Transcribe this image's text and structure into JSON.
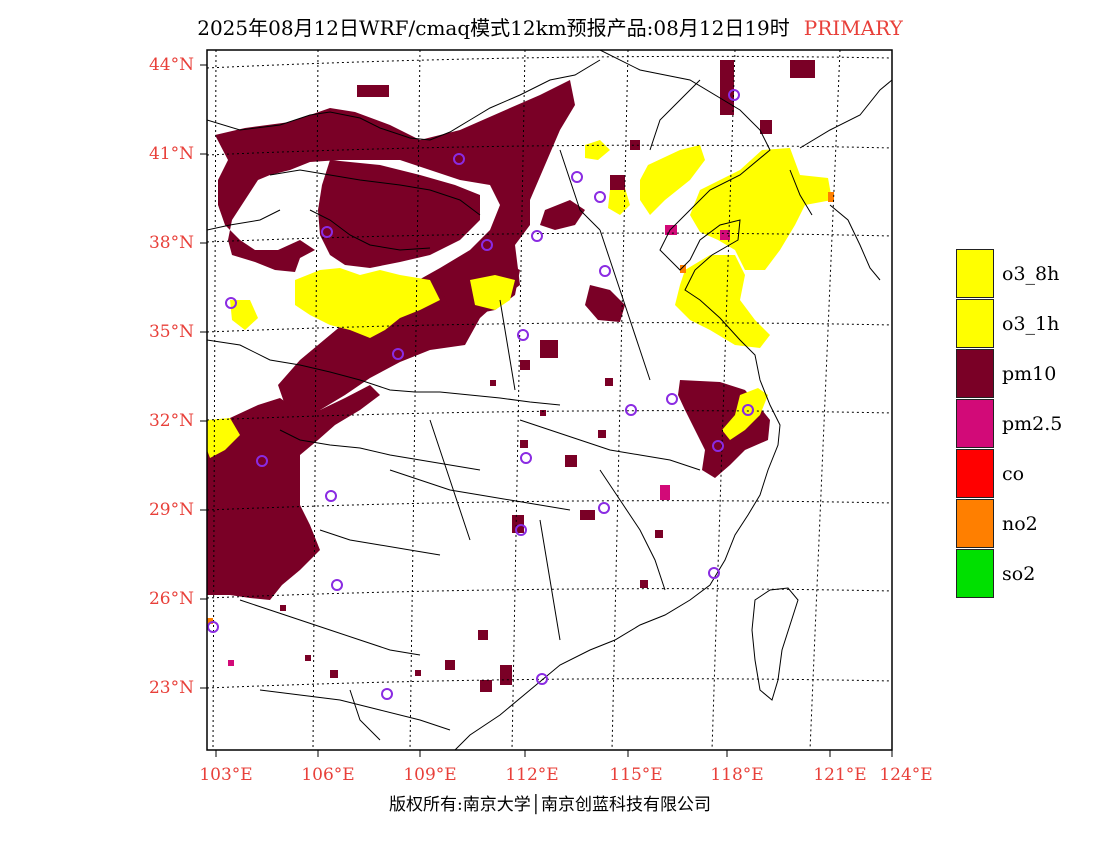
{
  "title": {
    "main": "2025年08月12日WRF/cmaq模式12km预报产品:08月12日19时",
    "tag": "PRIMARY"
  },
  "axes": {
    "lat_labels": [
      "44°N",
      "41°N",
      "38°N",
      "35°N",
      "32°N",
      "29°N",
      "26°N",
      "23°N"
    ],
    "lon_labels": [
      "103°E",
      "106°E",
      "109°E",
      "112°E",
      "115°E",
      "118°E",
      "121°E",
      "124°E"
    ]
  },
  "legend": {
    "items": [
      {
        "label": "o3_8h",
        "color": "#ffff00"
      },
      {
        "label": "o3_1h",
        "color": "#ffff00"
      },
      {
        "label": "pm10",
        "color": "#7a0026"
      },
      {
        "label": "pm2.5",
        "color": "#d20a78"
      },
      {
        "label": "co",
        "color": "#ff0000"
      },
      {
        "label": "no2",
        "color": "#ff7f00"
      },
      {
        "label": "so2",
        "color": "#00e000"
      }
    ]
  },
  "colors": {
    "pm10": "#7a0026",
    "pm25": "#d20a78",
    "o3": "#ffff00",
    "station": "#8a2be2",
    "label": "#e8403a"
  },
  "copyright": "版权所有:南京大学│南京创蓝科技有限公司"
}
